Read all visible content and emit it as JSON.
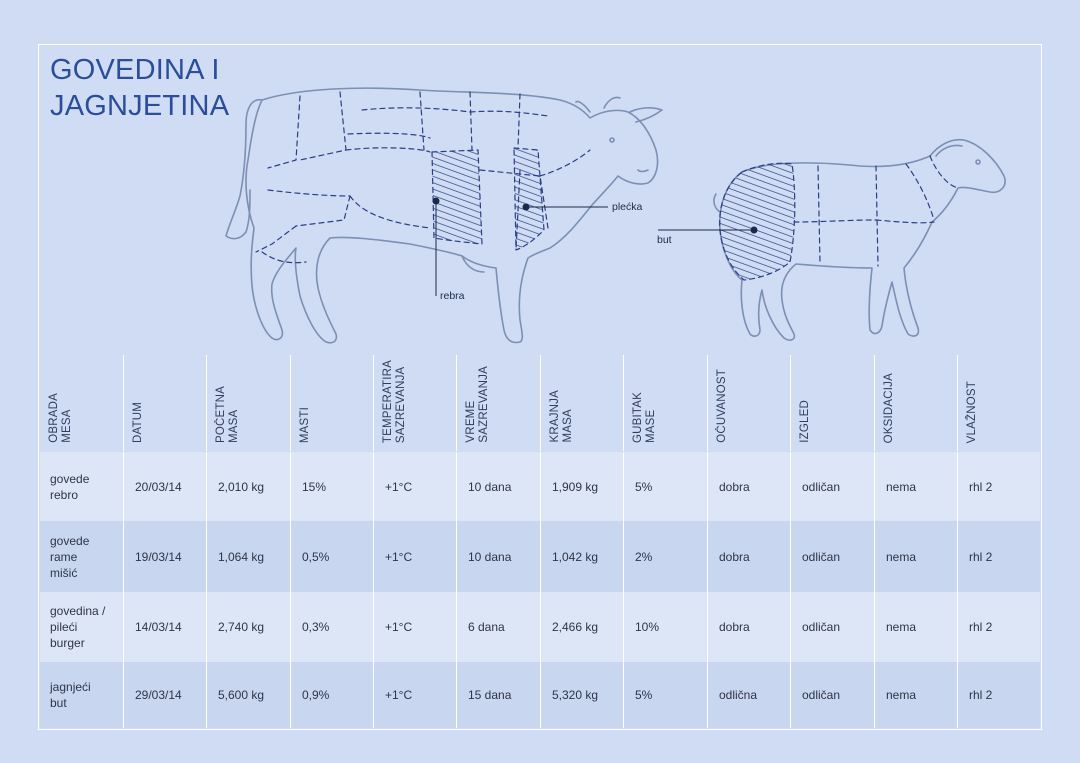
{
  "title_lines": [
    "GOVEDINA I",
    "JAGNJETINA"
  ],
  "callouts": {
    "rebra": "rebra",
    "plecka": "plećka",
    "but": "but"
  },
  "columns": [
    "OBRADA\nMESA",
    "DATUM",
    "POČETNA\nMASA",
    "MASTI",
    "TEMPERATIRA\nSAZREVANJA",
    "VREME\nSAZREVANJA",
    "KRAJNJA\nMASA",
    "GUBITAK\nMASE",
    "OČUVANOST",
    "IZGLED",
    "OKSIDACIJA",
    "VLAŽNOST"
  ],
  "rows": [
    [
      "govede\nrebro",
      "20/03/14",
      "2,010  kg",
      "15%",
      "+1°C",
      "10 dana",
      "1,909 kg",
      "5%",
      "dobra",
      "odličan",
      "nema",
      "rhl 2"
    ],
    [
      "govede\nrame\nmišić",
      "19/03/14",
      "1,064   kg",
      "0,5%",
      "+1°C",
      "10 dana",
      "1,042  kg",
      "2%",
      "dobra",
      "odličan",
      "nema",
      "rhl 2"
    ],
    [
      "govedina /\npileći\nburger",
      "14/03/14",
      "2,740  kg",
      "0,3%",
      "+1°C",
      "6 dana",
      "2,466  kg",
      "10%",
      "dobra",
      "odličan",
      "nema",
      "rhl 2"
    ],
    [
      "jagnjeći\nbut",
      "29/03/14",
      "5,600  kg",
      "0,9%",
      "+1°C",
      "15  dana",
      "5,320  kg",
      "5%",
      "odlična",
      "odličan",
      "nema",
      "rhl 2"
    ]
  ],
  "colors": {
    "background": "#cfdcf3",
    "title": "#2b4e9a",
    "hatch": "#2b3f86",
    "sketch": "#7c8fb4"
  }
}
